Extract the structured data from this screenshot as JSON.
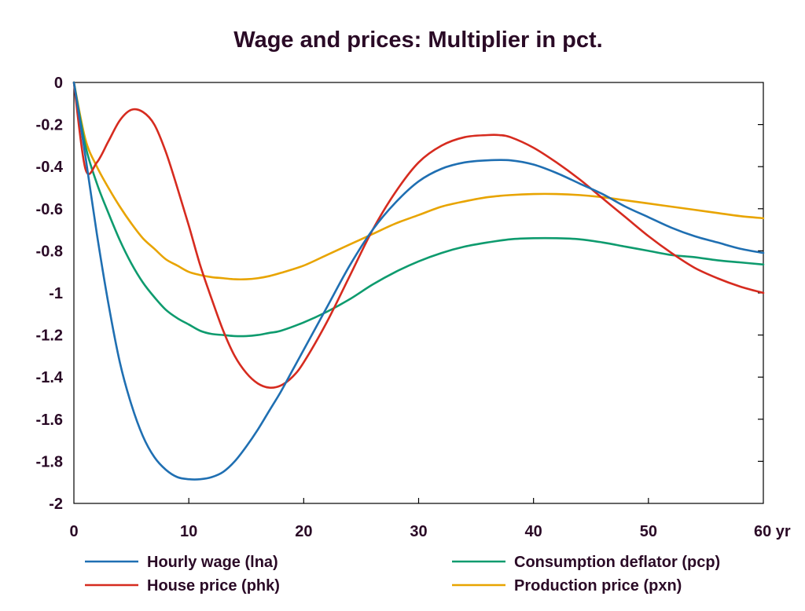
{
  "chart_data": {
    "type": "line",
    "title": "Wage and prices: Multiplier in pct.",
    "x_unit_label": "yr",
    "xlim": [
      0,
      60
    ],
    "ylim": [
      -2,
      0
    ],
    "x_ticks": [
      0,
      10,
      20,
      30,
      40,
      50,
      60
    ],
    "x_tick_labels": [
      "0",
      "10",
      "20",
      "30",
      "40",
      "50",
      "60 yr"
    ],
    "y_ticks": [
      0,
      -0.2,
      -0.4,
      -0.6,
      -0.8,
      -1,
      -1.2,
      -1.4,
      -1.6,
      -1.8,
      -2
    ],
    "y_tick_labels": [
      "0",
      "-0.2",
      "-0.4",
      "-0.6",
      "-0.8",
      "-1",
      "-1.2",
      "-1.4",
      "-1.6",
      "-1.8",
      "-2"
    ],
    "grid": false,
    "legend_position": "bottom",
    "series": [
      {
        "name": "Hourly wage (lna)",
        "color": "#1f6fb2",
        "x": [
          0,
          1,
          2,
          3,
          4,
          5,
          6,
          7,
          8,
          9,
          10,
          11,
          12,
          13,
          14,
          15,
          16,
          17,
          18,
          19,
          20,
          22,
          24,
          26,
          28,
          30,
          32,
          34,
          36,
          38,
          40,
          42,
          44,
          46,
          48,
          50,
          52,
          54,
          56,
          58,
          60
        ],
        "y": [
          0,
          -0.35,
          -0.72,
          -1.05,
          -1.33,
          -1.53,
          -1.68,
          -1.78,
          -1.84,
          -1.875,
          -1.885,
          -1.885,
          -1.875,
          -1.85,
          -1.8,
          -1.73,
          -1.65,
          -1.56,
          -1.47,
          -1.37,
          -1.27,
          -1.07,
          -0.87,
          -0.7,
          -0.57,
          -0.47,
          -0.41,
          -0.38,
          -0.37,
          -0.37,
          -0.39,
          -0.43,
          -0.48,
          -0.53,
          -0.59,
          -0.64,
          -0.69,
          -0.73,
          -0.76,
          -0.79,
          -0.81
        ]
      },
      {
        "name": "House price (phk)",
        "color": "#d62b1f",
        "x": [
          0,
          1,
          2,
          3,
          4,
          5,
          6,
          7,
          8,
          9,
          10,
          11,
          12,
          13,
          14,
          15,
          16,
          17,
          18,
          19,
          20,
          22,
          24,
          26,
          28,
          30,
          32,
          34,
          36,
          37,
          38,
          40,
          42,
          44,
          46,
          48,
          50,
          52,
          54,
          56,
          58,
          60
        ],
        "y": [
          0,
          -0.41,
          -0.38,
          -0.28,
          -0.18,
          -0.13,
          -0.14,
          -0.2,
          -0.33,
          -0.5,
          -0.68,
          -0.87,
          -1.03,
          -1.18,
          -1.3,
          -1.38,
          -1.43,
          -1.45,
          -1.44,
          -1.4,
          -1.33,
          -1.14,
          -0.92,
          -0.7,
          -0.52,
          -0.38,
          -0.3,
          -0.26,
          -0.25,
          -0.25,
          -0.26,
          -0.31,
          -0.38,
          -0.46,
          -0.55,
          -0.64,
          -0.73,
          -0.81,
          -0.88,
          -0.93,
          -0.97,
          -1.0
        ]
      },
      {
        "name": "Consumption deflator (pcp)",
        "color": "#0e9b6e",
        "x": [
          0,
          1,
          2,
          3,
          4,
          5,
          6,
          7,
          8,
          9,
          10,
          11,
          12,
          13,
          14,
          15,
          16,
          17,
          18,
          20,
          22,
          24,
          26,
          28,
          30,
          32,
          34,
          36,
          38,
          40,
          42,
          44,
          46,
          48,
          50,
          52,
          54,
          56,
          58,
          60
        ],
        "y": [
          0,
          -0.3,
          -0.48,
          -0.62,
          -0.75,
          -0.86,
          -0.95,
          -1.02,
          -1.08,
          -1.12,
          -1.15,
          -1.18,
          -1.195,
          -1.2,
          -1.205,
          -1.205,
          -1.2,
          -1.19,
          -1.18,
          -1.14,
          -1.09,
          -1.03,
          -0.96,
          -0.9,
          -0.85,
          -0.81,
          -0.78,
          -0.76,
          -0.745,
          -0.74,
          -0.74,
          -0.745,
          -0.76,
          -0.78,
          -0.8,
          -0.82,
          -0.83,
          -0.845,
          -0.855,
          -0.865
        ]
      },
      {
        "name": "Production price (pxn)",
        "color": "#e8a400",
        "x": [
          0,
          1,
          2,
          3,
          4,
          5,
          6,
          7,
          8,
          9,
          10,
          11,
          12,
          13,
          14,
          15,
          16,
          17,
          18,
          20,
          22,
          24,
          26,
          28,
          30,
          32,
          34,
          36,
          38,
          40,
          42,
          44,
          46,
          48,
          50,
          52,
          54,
          56,
          58,
          60
        ],
        "y": [
          0,
          -0.27,
          -0.4,
          -0.5,
          -0.59,
          -0.67,
          -0.74,
          -0.79,
          -0.84,
          -0.87,
          -0.9,
          -0.915,
          -0.925,
          -0.93,
          -0.935,
          -0.935,
          -0.93,
          -0.92,
          -0.905,
          -0.87,
          -0.82,
          -0.77,
          -0.72,
          -0.67,
          -0.63,
          -0.59,
          -0.565,
          -0.545,
          -0.535,
          -0.53,
          -0.53,
          -0.535,
          -0.545,
          -0.56,
          -0.575,
          -0.59,
          -0.605,
          -0.62,
          -0.635,
          -0.645
        ]
      }
    ]
  }
}
